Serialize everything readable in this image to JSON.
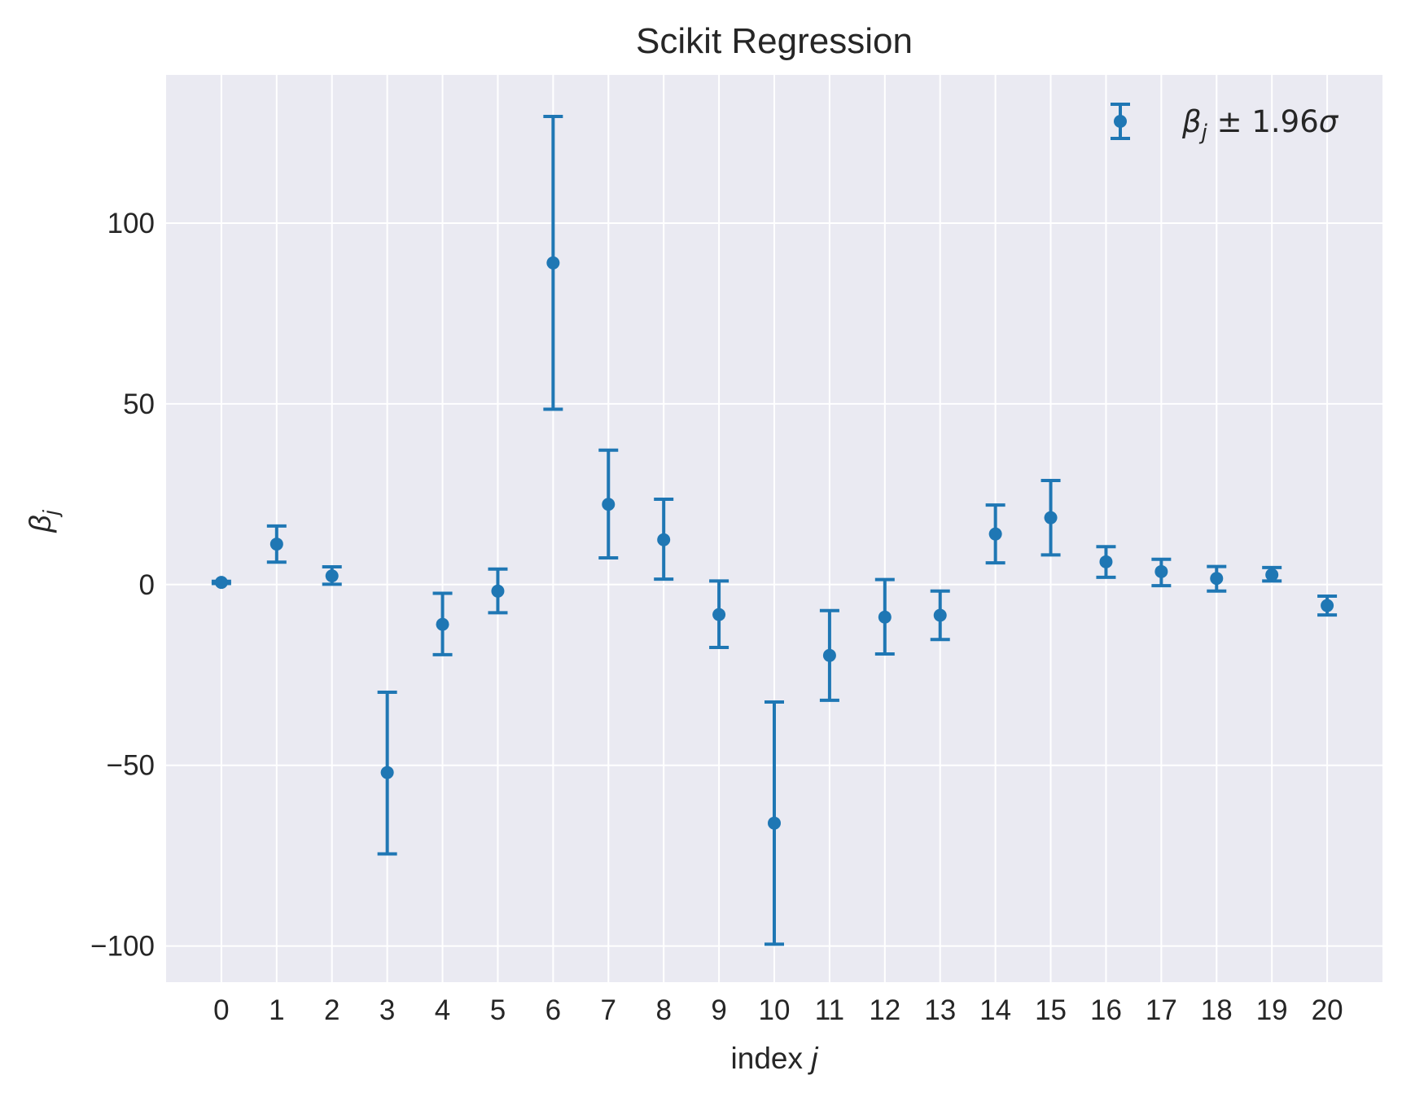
{
  "chart_data": {
    "type": "scatter",
    "title": "Scikit Regression",
    "xlabel": "index j",
    "xlabel_parts": {
      "text": "index ",
      "italic": "j"
    },
    "ylabel": "βj",
    "ylabel_parts": {
      "symbol": "β",
      "subscript": "j"
    },
    "legend": {
      "label": "βj ± 1.96σ",
      "parts": {
        "symbol": "β",
        "subscript": "j",
        "rest": " ± 1.96",
        "sigma": "σ"
      },
      "placement": "top-right"
    },
    "x": [
      0,
      1,
      2,
      3,
      4,
      5,
      6,
      7,
      8,
      9,
      10,
      11,
      12,
      13,
      14,
      15,
      16,
      17,
      18,
      19,
      20
    ],
    "xticks": [
      "0",
      "1",
      "2",
      "3",
      "4",
      "5",
      "6",
      "7",
      "8",
      "9",
      "10",
      "11",
      "12",
      "13",
      "14",
      "15",
      "16",
      "17",
      "18",
      "19",
      "20"
    ],
    "yticks": [
      "−100",
      "−50",
      "0",
      "50",
      "100"
    ],
    "ytick_values": [
      -100,
      -50,
      0,
      50,
      100
    ],
    "xlim": [
      -1,
      21
    ],
    "ylim": [
      -110,
      141
    ],
    "grid": true,
    "series": [
      {
        "values": [
          0.6,
          11.2,
          2.4,
          -52.0,
          -11.0,
          -1.8,
          89.0,
          22.2,
          12.4,
          -8.3,
          -66.0,
          -19.6,
          -9.0,
          -8.5,
          14.0,
          18.5,
          6.3,
          3.6,
          1.7,
          2.7,
          -5.8
        ],
        "err_low": [
          0.3,
          6.2,
          0.1,
          -74.5,
          -19.4,
          -7.8,
          48.5,
          7.4,
          1.5,
          -17.4,
          -99.5,
          -32.0,
          -19.2,
          -15.2,
          6.0,
          8.2,
          2.0,
          -0.3,
          -1.8,
          1.0,
          -8.4
        ],
        "err_high": [
          0.9,
          16.2,
          4.9,
          -29.8,
          -2.4,
          4.3,
          129.5,
          37.2,
          23.6,
          1.0,
          -32.5,
          -7.2,
          1.4,
          -1.8,
          22.0,
          28.8,
          10.5,
          7.0,
          5.0,
          4.7,
          -3.2
        ]
      }
    ],
    "colors": {
      "series": "#1f77b4",
      "plot_bg": "#eaeaf2",
      "grid": "#ffffff",
      "text": "#262626"
    }
  }
}
